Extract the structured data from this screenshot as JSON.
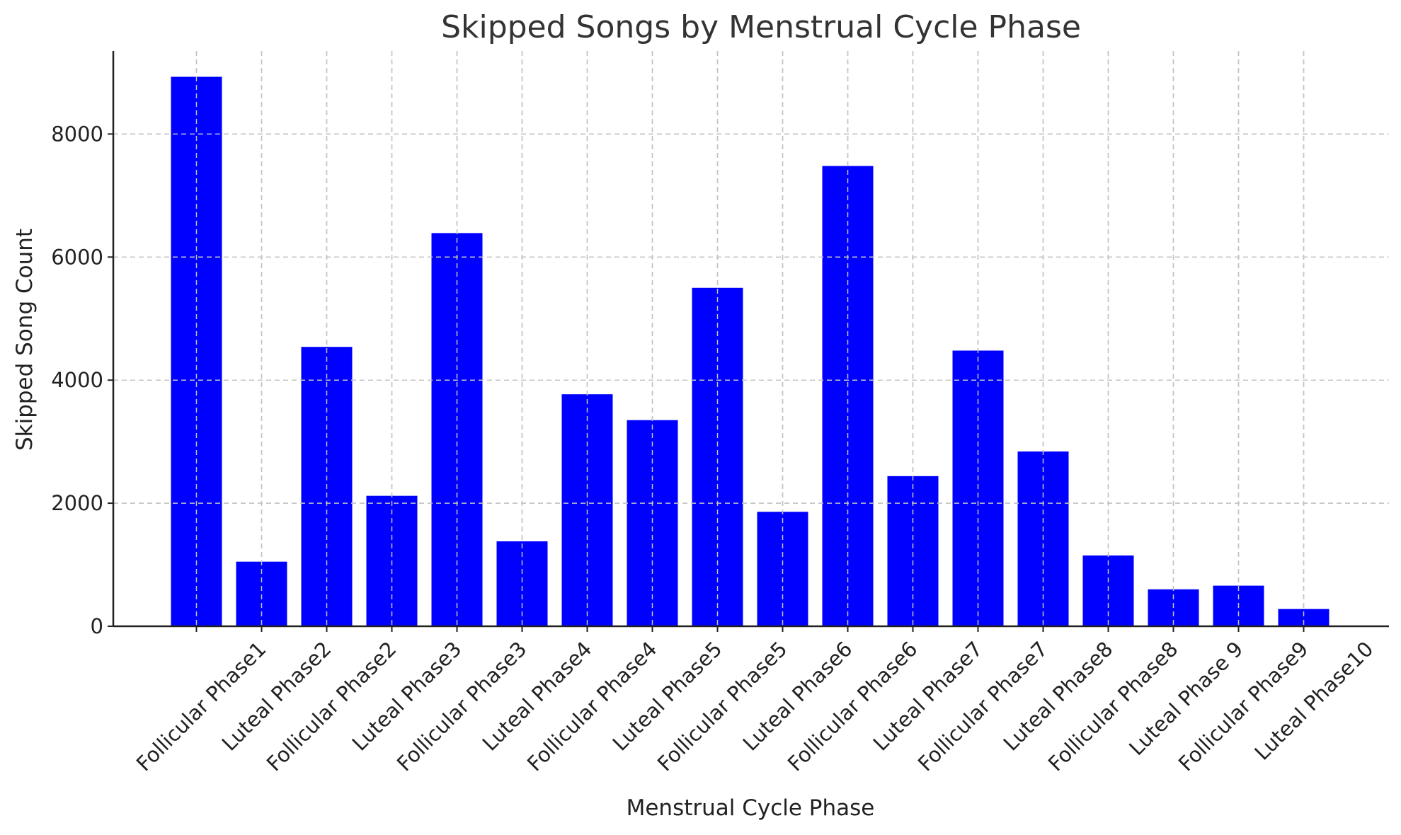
{
  "chart_data": {
    "type": "bar",
    "title": "Skipped Songs by Menstrual Cycle Phase",
    "xlabel": "Menstrual Cycle Phase",
    "ylabel": "Skipped Song Count",
    "categories": [
      "Follicular Phase1",
      "Luteal Phase2",
      "Follicular Phase2",
      "Luteal Phase3",
      "Follicular Phase3",
      "Luteal Phase4",
      "Follicular Phase4",
      "Luteal Phase5",
      "Follicular Phase5",
      "Luteal Phase6",
      "Follicular Phase6",
      "Luteal Phase7",
      "Follicular Phase7",
      "Luteal Phase8",
      "Follicular Phase8",
      "Luteal Phase 9",
      "Follicular Phase9",
      "Luteal Phase10"
    ],
    "values": [
      8930,
      1050,
      4540,
      2120,
      6390,
      1380,
      3770,
      3350,
      5500,
      1860,
      7480,
      2440,
      4480,
      2840,
      1150,
      600,
      660,
      280
    ],
    "ylim": [
      0,
      9350
    ],
    "yticks": [
      0,
      2000,
      4000,
      6000,
      8000
    ],
    "bar_color": "#0000ff",
    "grid": true,
    "x_tick_rotation_deg": 45
  }
}
